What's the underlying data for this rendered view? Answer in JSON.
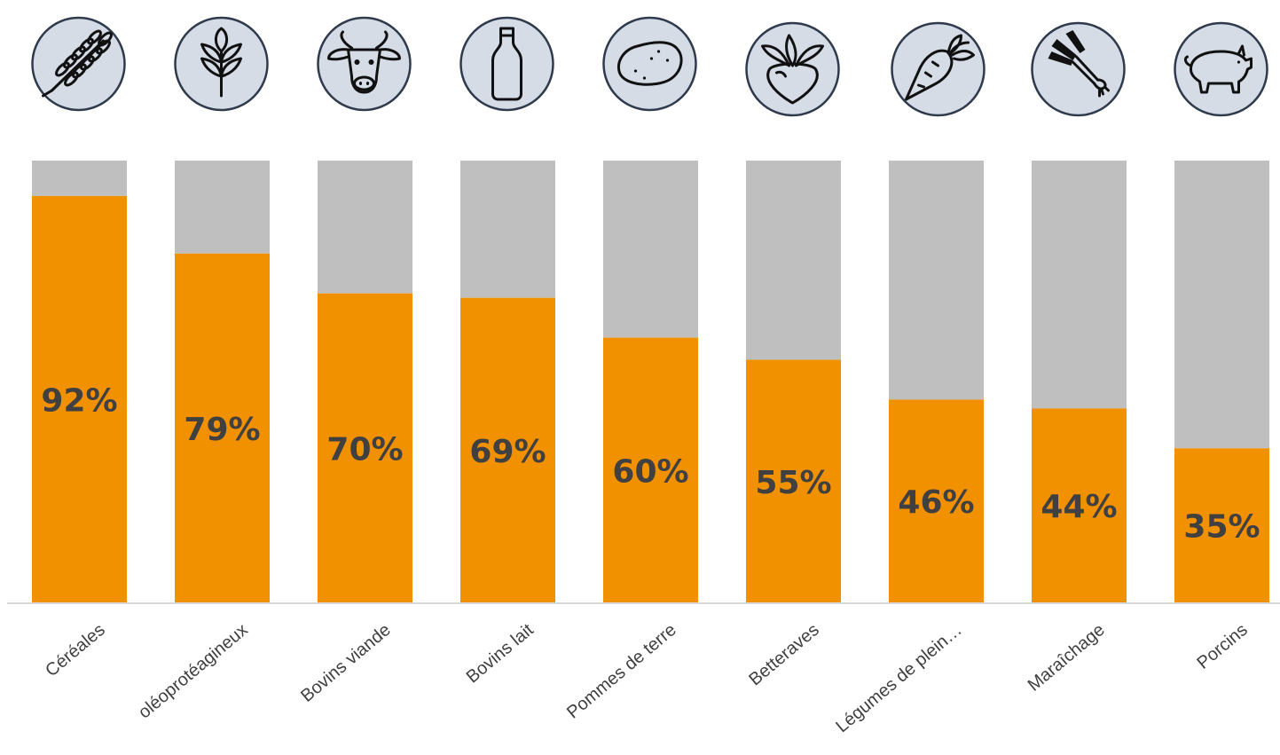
{
  "chart_data": {
    "type": "bar",
    "stacked": true,
    "categories": [
      "Céréales",
      "oléoprotéagineux",
      "Bovins viande",
      "Bovins lait",
      "Pommes de terre",
      "Betteraves",
      "Légumes de plein…",
      "Maraîchage",
      "Porcins"
    ],
    "values": [
      92,
      79,
      70,
      69,
      60,
      55,
      46,
      44,
      35
    ],
    "value_labels": [
      "92%",
      "79%",
      "70%",
      "69%",
      "60%",
      "55%",
      "46%",
      "44%",
      "35%"
    ],
    "series": [
      {
        "values": [
          92,
          79,
          70,
          69,
          60,
          55,
          46,
          44,
          35
        ],
        "color": "#f29100"
      },
      {
        "values": [
          8,
          21,
          30,
          31,
          40,
          45,
          54,
          56,
          65
        ],
        "color": "#bfbfbf"
      }
    ],
    "ylim": [
      0,
      100
    ],
    "grid": false,
    "legend": "none",
    "icons": [
      "wheat-icon",
      "plant-icon",
      "cow-icon",
      "milk-bottle-icon",
      "potato-icon",
      "beet-icon",
      "carrot-icon",
      "leek-icon",
      "pig-icon"
    ],
    "icon_circle_color": "#d5dce6",
    "axis_color": "#d9d9d9"
  }
}
